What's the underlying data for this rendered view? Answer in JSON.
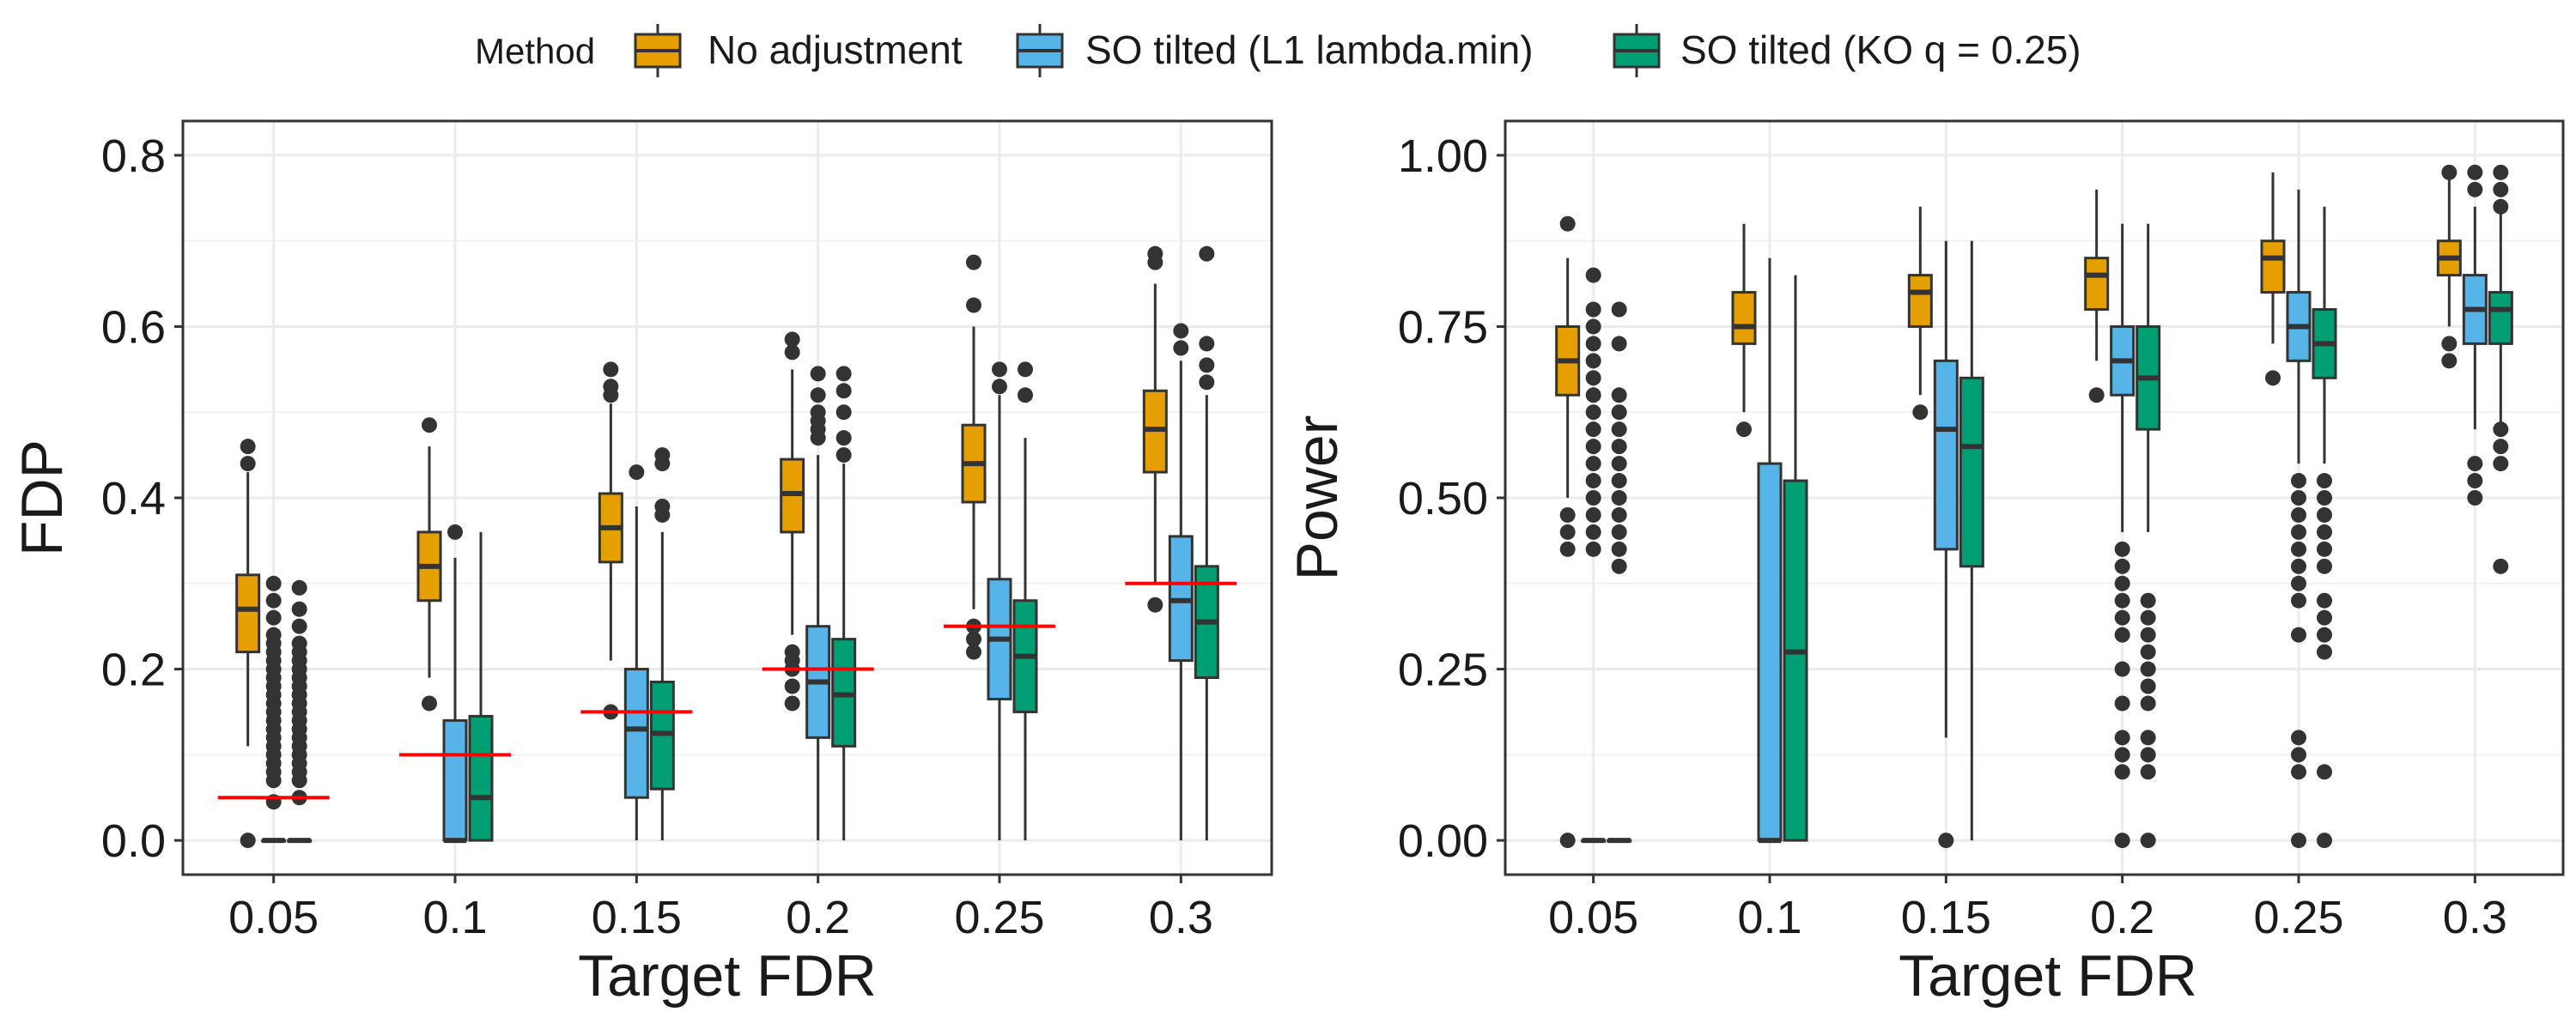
{
  "legend": {
    "title": "Method",
    "items": [
      {
        "label": "No adjustment",
        "color": "#E69F00"
      },
      {
        "label": "SO tilted (L1 lambda.min)",
        "color": "#56B4E9"
      },
      {
        "label": "SO tilted (KO q = 0.25)",
        "color": "#009E73"
      }
    ]
  },
  "chart_data": [
    {
      "type": "boxplot",
      "xlabel": "Target FDR",
      "ylabel": "FDP",
      "ylim": [
        -0.04,
        0.84
      ],
      "yticks": [
        0.0,
        0.2,
        0.4,
        0.6,
        0.8
      ],
      "ytick_labels": [
        "0.0",
        "0.2",
        "0.4",
        "0.6",
        "0.8"
      ],
      "categories": [
        "0.05",
        "0.1",
        "0.15",
        "0.2",
        "0.25",
        "0.3"
      ],
      "reference_lines": [
        0.05,
        0.1,
        0.15,
        0.2,
        0.25,
        0.3
      ],
      "reference_color": "#FF0000",
      "series": [
        {
          "name": "No adjustment",
          "boxes": [
            {
              "low": 0.11,
              "q1": 0.22,
              "median": 0.27,
              "q3": 0.31,
              "high": 0.43,
              "outliers": [
                0.0,
                0.44,
                0.46
              ]
            },
            {
              "low": 0.19,
              "q1": 0.28,
              "median": 0.32,
              "q3": 0.36,
              "high": 0.46,
              "outliers": [
                0.16,
                0.485
              ]
            },
            {
              "low": 0.21,
              "q1": 0.325,
              "median": 0.365,
              "q3": 0.405,
              "high": 0.51,
              "outliers": [
                0.15,
                0.52,
                0.53,
                0.55
              ]
            },
            {
              "low": 0.24,
              "q1": 0.36,
              "median": 0.405,
              "q3": 0.445,
              "high": 0.55,
              "outliers": [
                0.16,
                0.18,
                0.2,
                0.21,
                0.22,
                0.57,
                0.585
              ]
            },
            {
              "low": 0.27,
              "q1": 0.395,
              "median": 0.44,
              "q3": 0.485,
              "high": 0.6,
              "outliers": [
                0.22,
                0.235,
                0.25,
                0.625,
                0.675
              ]
            },
            {
              "low": 0.3,
              "q1": 0.43,
              "median": 0.48,
              "q3": 0.525,
              "high": 0.65,
              "outliers": [
                0.275,
                0.675,
                0.685
              ]
            }
          ]
        },
        {
          "name": "SO tilted (L1 lambda.min)",
          "boxes": [
            {
              "low": 0.0,
              "q1": 0.0,
              "median": 0.0,
              "q3": 0.0,
              "high": 0.0,
              "outliers": [
                0.045,
                0.07,
                0.08,
                0.09,
                0.1,
                0.11,
                0.12,
                0.13,
                0.14,
                0.15,
                0.16,
                0.17,
                0.18,
                0.19,
                0.2,
                0.21,
                0.22,
                0.23,
                0.24,
                0.26,
                0.28,
                0.3
              ]
            },
            {
              "low": 0.0,
              "q1": 0.0,
              "median": 0.0,
              "q3": 0.14,
              "high": 0.33,
              "outliers": [
                0.36
              ]
            },
            {
              "low": 0.0,
              "q1": 0.05,
              "median": 0.13,
              "q3": 0.2,
              "high": 0.39,
              "outliers": [
                0.43
              ]
            },
            {
              "low": 0.0,
              "q1": 0.12,
              "median": 0.185,
              "q3": 0.25,
              "high": 0.45,
              "outliers": [
                0.47,
                0.48,
                0.49,
                0.5,
                0.52,
                0.545
              ]
            },
            {
              "low": 0.0,
              "q1": 0.165,
              "median": 0.235,
              "q3": 0.305,
              "high": 0.52,
              "outliers": [
                0.53,
                0.55
              ]
            },
            {
              "low": 0.0,
              "q1": 0.21,
              "median": 0.28,
              "q3": 0.355,
              "high": 0.56,
              "outliers": [
                0.575,
                0.595
              ]
            }
          ]
        },
        {
          "name": "SO tilted (KO q = 0.25)",
          "boxes": [
            {
              "low": 0.0,
              "q1": 0.0,
              "median": 0.0,
              "q3": 0.0,
              "high": 0.0,
              "outliers": [
                0.05,
                0.07,
                0.08,
                0.09,
                0.1,
                0.11,
                0.12,
                0.13,
                0.14,
                0.15,
                0.16,
                0.17,
                0.18,
                0.19,
                0.2,
                0.21,
                0.22,
                0.23,
                0.25,
                0.27,
                0.295
              ]
            },
            {
              "low": 0.0,
              "q1": 0.0,
              "median": 0.05,
              "q3": 0.145,
              "high": 0.36,
              "outliers": []
            },
            {
              "low": 0.0,
              "q1": 0.06,
              "median": 0.125,
              "q3": 0.185,
              "high": 0.36,
              "outliers": [
                0.38,
                0.39,
                0.44,
                0.45
              ]
            },
            {
              "low": 0.0,
              "q1": 0.11,
              "median": 0.17,
              "q3": 0.235,
              "high": 0.44,
              "outliers": [
                0.45,
                0.47,
                0.5,
                0.525,
                0.545
              ]
            },
            {
              "low": 0.0,
              "q1": 0.15,
              "median": 0.215,
              "q3": 0.28,
              "high": 0.47,
              "outliers": [
                0.52,
                0.55
              ]
            },
            {
              "low": 0.0,
              "q1": 0.19,
              "median": 0.255,
              "q3": 0.32,
              "high": 0.52,
              "outliers": [
                0.535,
                0.555,
                0.58,
                0.685
              ]
            }
          ]
        }
      ]
    },
    {
      "type": "boxplot",
      "xlabel": "Target FDR",
      "ylabel": "Power",
      "ylim": [
        -0.05,
        1.05
      ],
      "yticks": [
        0.0,
        0.25,
        0.5,
        0.75,
        1.0
      ],
      "ytick_labels": [
        "0.00",
        "0.25",
        "0.50",
        "0.75",
        "1.00"
      ],
      "categories": [
        "0.05",
        "0.1",
        "0.15",
        "0.2",
        "0.25",
        "0.3"
      ],
      "reference_lines": [],
      "series": [
        {
          "name": "No adjustment",
          "boxes": [
            {
              "low": 0.5,
              "q1": 0.65,
              "median": 0.7,
              "q3": 0.75,
              "high": 0.85,
              "outliers": [
                0.0,
                0.425,
                0.45,
                0.475,
                0.9
              ]
            },
            {
              "low": 0.625,
              "q1": 0.725,
              "median": 0.75,
              "q3": 0.8,
              "high": 0.9,
              "outliers": [
                0.6
              ]
            },
            {
              "low": 0.65,
              "q1": 0.75,
              "median": 0.8,
              "q3": 0.825,
              "high": 0.925,
              "outliers": [
                0.625
              ]
            },
            {
              "low": 0.7,
              "q1": 0.775,
              "median": 0.825,
              "q3": 0.85,
              "high": 0.95,
              "outliers": [
                0.65
              ]
            },
            {
              "low": 0.725,
              "q1": 0.8,
              "median": 0.85,
              "q3": 0.875,
              "high": 0.975,
              "outliers": [
                0.675
              ]
            },
            {
              "low": 0.75,
              "q1": 0.825,
              "median": 0.85,
              "q3": 0.875,
              "high": 0.975,
              "outliers": [
                0.7,
                0.725,
                0.975
              ]
            }
          ]
        },
        {
          "name": "SO tilted (L1 lambda.min)",
          "boxes": [
            {
              "low": 0.0,
              "q1": 0.0,
              "median": 0.0,
              "q3": 0.0,
              "high": 0.0,
              "outliers": [
                0.425,
                0.45,
                0.475,
                0.5,
                0.525,
                0.55,
                0.575,
                0.6,
                0.625,
                0.65,
                0.675,
                0.7,
                0.725,
                0.75,
                0.775,
                0.825
              ]
            },
            {
              "low": 0.0,
              "q1": 0.0,
              "median": 0.0,
              "q3": 0.55,
              "high": 0.85,
              "outliers": []
            },
            {
              "low": 0.15,
              "q1": 0.425,
              "median": 0.6,
              "q3": 0.7,
              "high": 0.875,
              "outliers": [
                0.0
              ]
            },
            {
              "low": 0.45,
              "q1": 0.65,
              "median": 0.7,
              "q3": 0.75,
              "high": 0.9,
              "outliers": [
                0.0,
                0.1,
                0.125,
                0.15,
                0.2,
                0.25,
                0.3,
                0.325,
                0.35,
                0.375,
                0.4,
                0.425
              ]
            },
            {
              "low": 0.55,
              "q1": 0.7,
              "median": 0.75,
              "q3": 0.8,
              "high": 0.95,
              "outliers": [
                0.0,
                0.1,
                0.125,
                0.15,
                0.3,
                0.35,
                0.375,
                0.4,
                0.425,
                0.45,
                0.475,
                0.5,
                0.525
              ]
            },
            {
              "low": 0.6,
              "q1": 0.725,
              "median": 0.775,
              "q3": 0.825,
              "high": 0.925,
              "outliers": [
                0.5,
                0.525,
                0.55,
                0.95,
                0.975
              ]
            }
          ]
        },
        {
          "name": "SO tilted (KO q = 0.25)",
          "boxes": [
            {
              "low": 0.0,
              "q1": 0.0,
              "median": 0.0,
              "q3": 0.0,
              "high": 0.0,
              "outliers": [
                0.4,
                0.425,
                0.45,
                0.475,
                0.5,
                0.525,
                0.55,
                0.575,
                0.6,
                0.625,
                0.65,
                0.725,
                0.775
              ]
            },
            {
              "low": 0.0,
              "q1": 0.0,
              "median": 0.275,
              "q3": 0.525,
              "high": 0.825,
              "outliers": []
            },
            {
              "low": 0.0,
              "q1": 0.4,
              "median": 0.575,
              "q3": 0.675,
              "high": 0.875,
              "outliers": []
            },
            {
              "low": 0.45,
              "q1": 0.6,
              "median": 0.675,
              "q3": 0.75,
              "high": 0.9,
              "outliers": [
                0.0,
                0.1,
                0.125,
                0.15,
                0.2,
                0.225,
                0.25,
                0.275,
                0.3,
                0.325,
                0.35
              ]
            },
            {
              "low": 0.55,
              "q1": 0.675,
              "median": 0.725,
              "q3": 0.775,
              "high": 0.925,
              "outliers": [
                0.0,
                0.1,
                0.275,
                0.3,
                0.325,
                0.35,
                0.4,
                0.425,
                0.45,
                0.475,
                0.5,
                0.525
              ]
            },
            {
              "low": 0.6,
              "q1": 0.725,
              "median": 0.775,
              "q3": 0.8,
              "high": 0.925,
              "outliers": [
                0.4,
                0.55,
                0.575,
                0.6,
                0.925,
                0.95,
                0.975
              ]
            }
          ]
        }
      ]
    }
  ]
}
